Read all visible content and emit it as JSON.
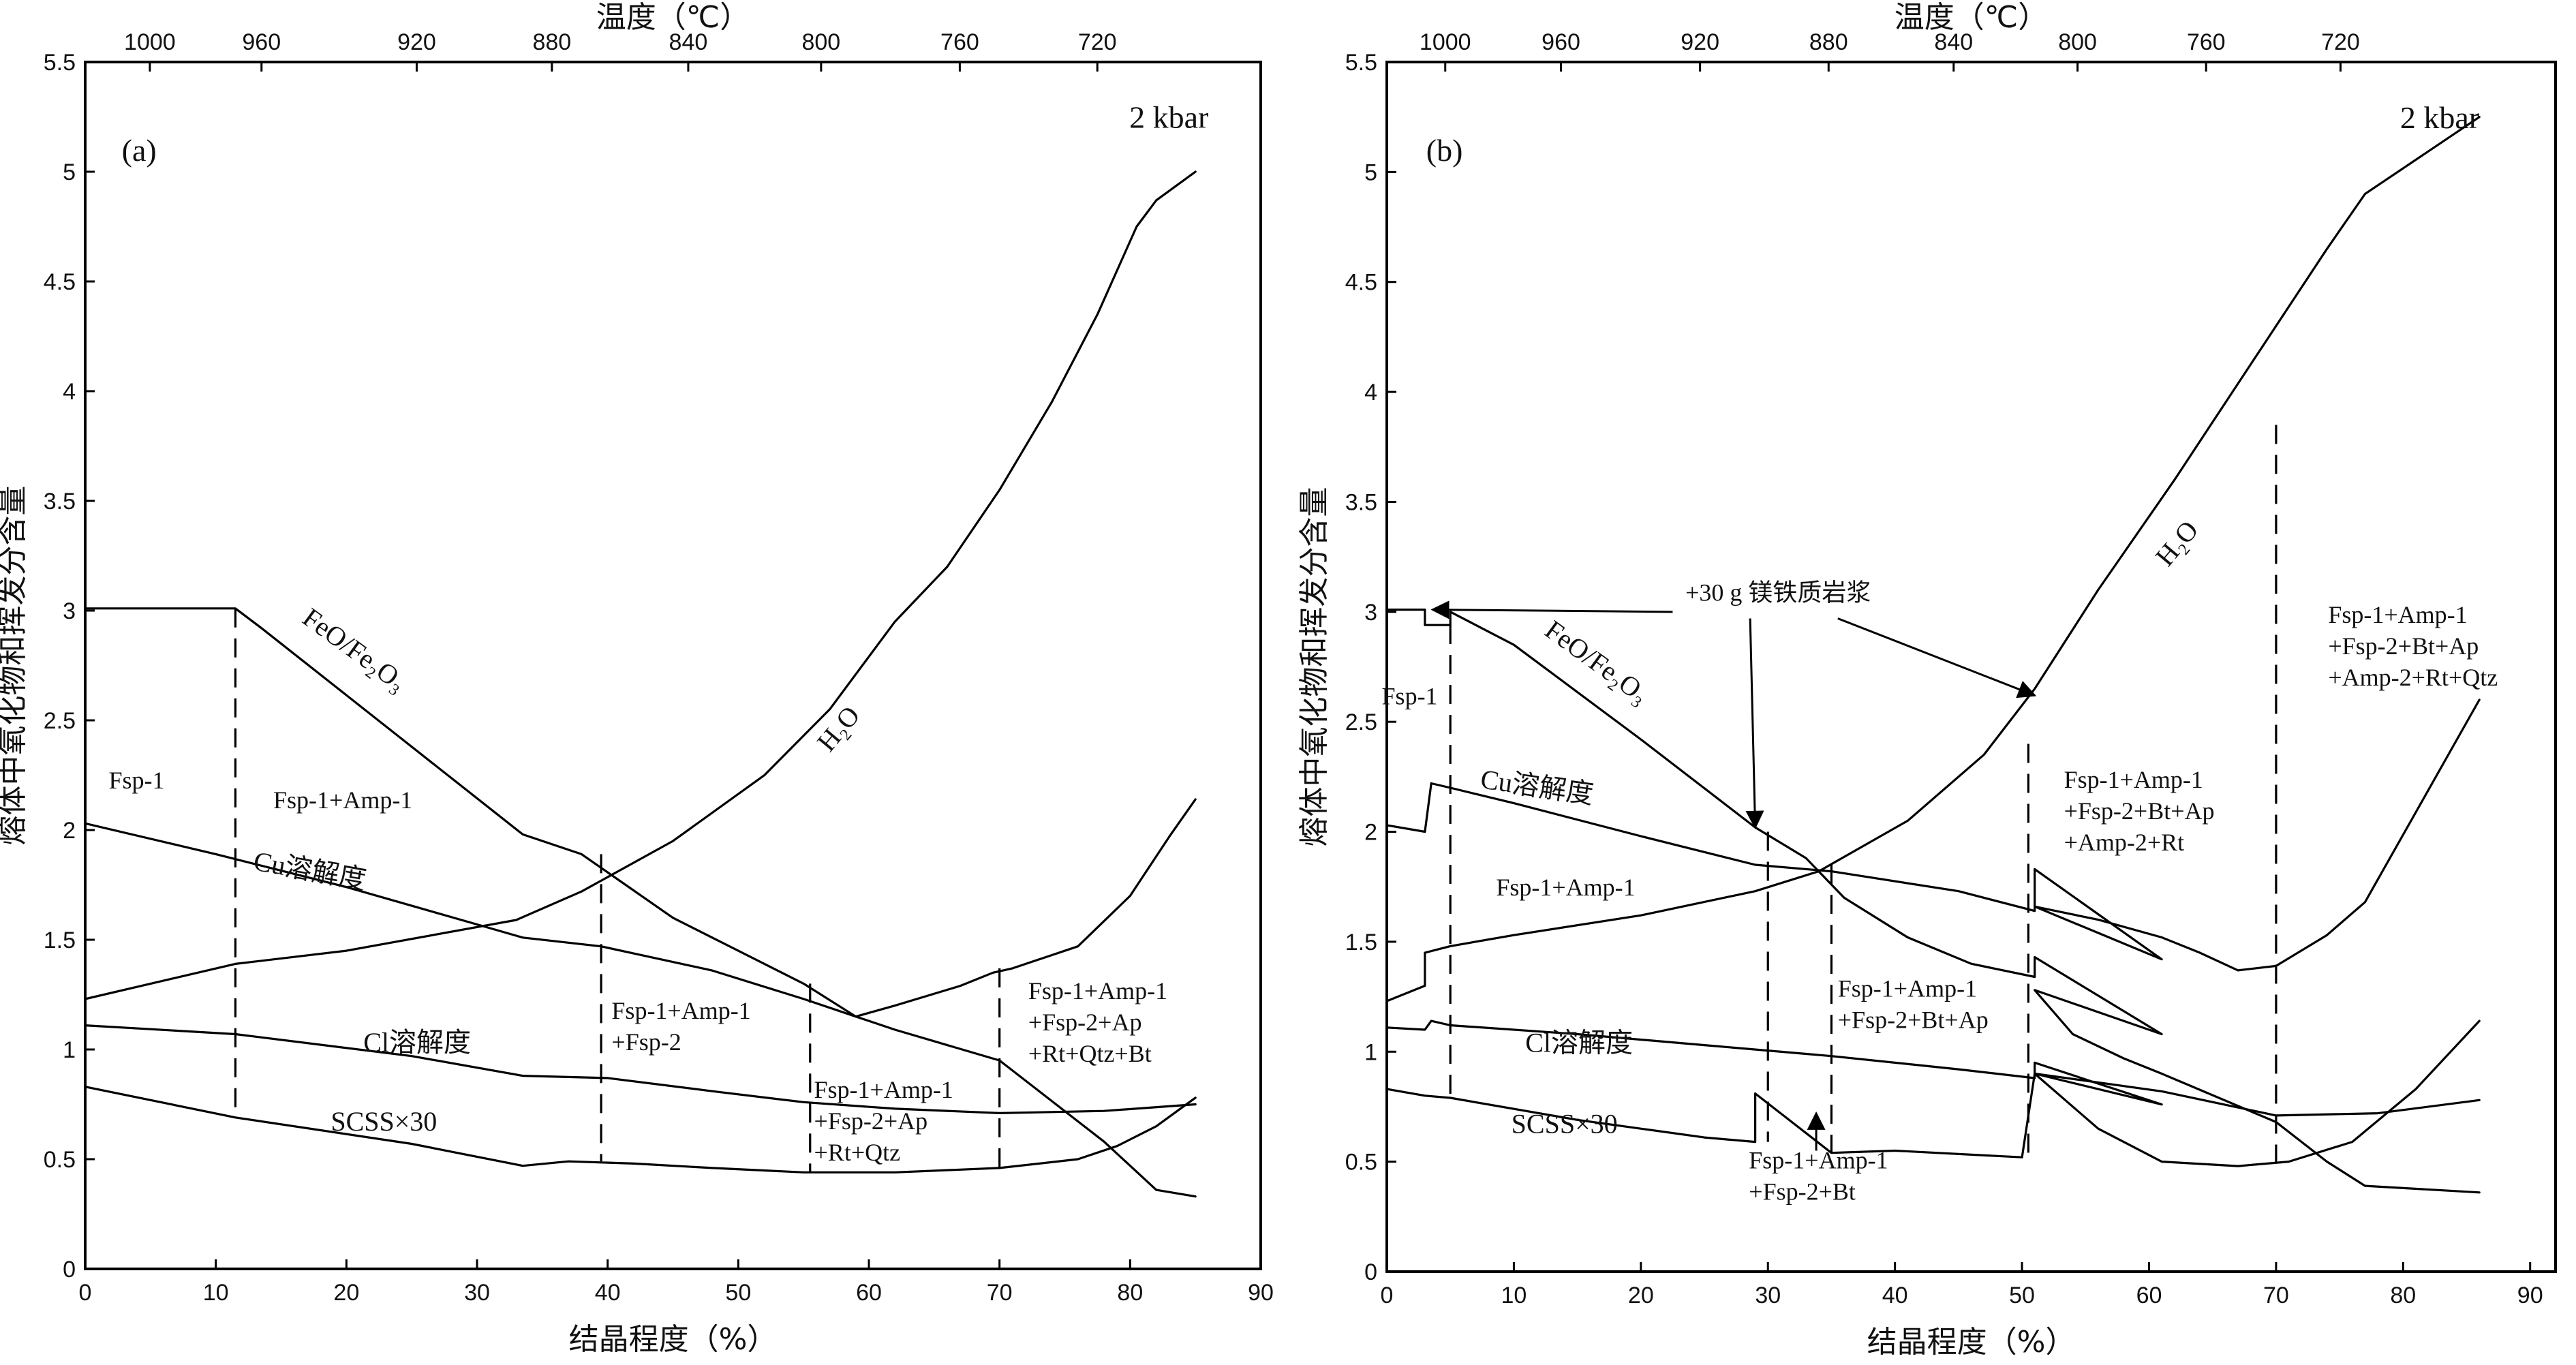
{
  "figure": {
    "panels": [
      {
        "tag": "(a)",
        "pressure": "2 kbar",
        "top_axis_title": "温度（℃）",
        "x_axis_title": "结晶程度（%）",
        "y_axis_title": "熔体中氧化物和挥发分含量",
        "x_ticks": [
          "0",
          "10",
          "20",
          "30",
          "40",
          "50",
          "60",
          "70",
          "80",
          "90"
        ],
        "y_ticks": [
          "0",
          "0.5",
          "1",
          "1.5",
          "2",
          "2.5",
          "3",
          "3.5",
          "4",
          "4.5",
          "5",
          "5.5"
        ],
        "top_ticks": [
          "1000",
          "960",
          "920",
          "880",
          "840",
          "800",
          "760",
          "720"
        ],
        "curve_labels": {
          "feo": "FeO/Fe₂O₃",
          "h2o": "H₂O",
          "cu": "Cu溶解度",
          "cl": "Cl溶解度",
          "scss": "SCSS×30"
        },
        "fields": [
          {
            "lines": [
              "Fsp-1"
            ]
          },
          {
            "lines": [
              "Fsp-1+Amp-1"
            ]
          },
          {
            "lines": [
              "Fsp-1+Amp-1",
              "+Fsp-2"
            ]
          },
          {
            "lines": [
              "Fsp-1+Amp-1",
              "+Fsp-2+Ap",
              "+Rt+Qtz"
            ]
          },
          {
            "lines": [
              "Fsp-1+Amp-1",
              "+Fsp-2+Ap",
              "+Rt+Qtz+Bt"
            ]
          }
        ]
      },
      {
        "tag": "(b)",
        "pressure": "2 kbar",
        "top_axis_title": "温度（℃）",
        "x_axis_title": "结晶程度（%）",
        "y_axis_title": "熔体中氧化物和挥发分含量",
        "x_ticks": [
          "0",
          "10",
          "20",
          "30",
          "40",
          "50",
          "60",
          "70",
          "80",
          "90"
        ],
        "y_ticks": [
          "0",
          "0.5",
          "1",
          "1.5",
          "2",
          "2.5",
          "3",
          "3.5",
          "4",
          "4.5",
          "5",
          "5.5"
        ],
        "top_ticks": [
          "1000",
          "960",
          "920",
          "880",
          "840",
          "800",
          "760",
          "720"
        ],
        "curve_labels": {
          "feo": "FeO/Fe₂O₃",
          "h2o": "H₂O",
          "cu": "Cu溶解度",
          "cl": "Cl溶解度",
          "scss": "SCSS×30"
        },
        "annotation": "+30 g 镁铁质岩浆",
        "fields": [
          {
            "lines": [
              "Fsp-1"
            ]
          },
          {
            "lines": [
              "Fsp-1+Amp-1"
            ]
          },
          {
            "lines": [
              "Fsp-1+Amp-1",
              "+Fsp-2+Bt+Ap"
            ]
          },
          {
            "lines": [
              "Fsp-1+Amp-1",
              "+Fsp-2+Bt"
            ]
          },
          {
            "lines": [
              "Fsp-1+Amp-1",
              "+Fsp-2+Bt+Ap",
              "+Amp-2+Rt"
            ]
          },
          {
            "lines": [
              "Fsp-1+Amp-1",
              "+Fsp-2+Bt+Ap",
              "+Amp-2+Rt+Qtz"
            ]
          }
        ]
      }
    ]
  },
  "chart_data": [
    {
      "type": "line",
      "title": "",
      "xlabel": "结晶程度（%）",
      "ylabel": "熔体中氧化物和挥发分含量",
      "top_xlabel": "温度（℃）",
      "xlim": [
        0,
        90
      ],
      "ylim": [
        0,
        5.5
      ],
      "top_ticks_temperature": [
        1000,
        960,
        920,
        880,
        840,
        800,
        760,
        720
      ],
      "grid": false,
      "series": [
        {
          "name": "FeO/Fe₂O₃",
          "points": [
            [
              0,
              3.01
            ],
            [
              11.5,
              3.01
            ],
            [
              13.5,
              2.92
            ],
            [
              33.5,
              1.98
            ],
            [
              38,
              1.89
            ],
            [
              45,
              1.6
            ],
            [
              55,
              1.3
            ],
            [
              59,
              1.15
            ],
            [
              62,
              1.09
            ],
            [
              70,
              0.95
            ],
            [
              78,
              0.58
            ],
            [
              82,
              0.36
            ],
            [
              85,
              0.33
            ]
          ]
        },
        {
          "name": "H₂O",
          "points": [
            [
              0,
              1.23
            ],
            [
              11.5,
              1.39
            ],
            [
              20,
              1.45
            ],
            [
              33,
              1.59
            ],
            [
              38,
              1.72
            ],
            [
              45,
              1.95
            ],
            [
              52,
              2.25
            ],
            [
              57,
              2.55
            ],
            [
              62,
              2.95
            ],
            [
              66,
              3.2
            ],
            [
              70,
              3.55
            ],
            [
              74,
              3.95
            ],
            [
              77.5,
              4.35
            ],
            [
              80.5,
              4.75
            ],
            [
              82,
              4.87
            ],
            [
              85,
              5.0
            ]
          ]
        },
        {
          "name": "Cu溶解度",
          "points": [
            [
              0,
              2.03
            ],
            [
              10,
              1.89
            ],
            [
              20,
              1.74
            ],
            [
              30,
              1.57
            ],
            [
              33.5,
              1.51
            ],
            [
              39.5,
              1.47
            ],
            [
              48,
              1.36
            ],
            [
              55,
              1.23
            ],
            [
              59,
              1.15
            ],
            [
              62,
              1.2
            ],
            [
              67,
              1.29
            ],
            [
              69.5,
              1.35
            ],
            [
              71,
              1.37
            ],
            [
              76,
              1.47
            ],
            [
              80,
              1.7
            ],
            [
              83,
              1.97
            ],
            [
              85,
              2.14
            ]
          ]
        },
        {
          "name": "Cl溶解度",
          "points": [
            [
              0,
              1.11
            ],
            [
              11.5,
              1.07
            ],
            [
              25,
              0.97
            ],
            [
              33.5,
              0.88
            ],
            [
              40,
              0.87
            ],
            [
              48,
              0.81
            ],
            [
              55,
              0.76
            ],
            [
              62,
              0.73
            ],
            [
              70,
              0.71
            ],
            [
              78,
              0.72
            ],
            [
              85,
              0.75
            ]
          ]
        },
        {
          "name": "SCSS×30",
          "points": [
            [
              0,
              0.83
            ],
            [
              11.5,
              0.69
            ],
            [
              25,
              0.57
            ],
            [
              33.5,
              0.47
            ],
            [
              37,
              0.49
            ],
            [
              42,
              0.48
            ],
            [
              48,
              0.46
            ],
            [
              55,
              0.44
            ],
            [
              62,
              0.44
            ],
            [
              70,
              0.46
            ],
            [
              76,
              0.5
            ],
            [
              79,
              0.56
            ],
            [
              82,
              0.65
            ],
            [
              85,
              0.78
            ]
          ]
        }
      ],
      "phase_boundaries_x": [
        11.5,
        39.5,
        55.5,
        70
      ]
    },
    {
      "type": "line",
      "title": "",
      "xlabel": "结晶程度（%）",
      "ylabel": "熔体中氧化物和挥发分含量",
      "top_xlabel": "温度（℃）",
      "xlim": [
        0,
        92
      ],
      "ylim": [
        0,
        5.5
      ],
      "top_ticks_temperature": [
        1000,
        960,
        920,
        880,
        840,
        800,
        760,
        720
      ],
      "grid": false,
      "series": [
        {
          "name": "FeO/Fe₂O₃",
          "points": [
            [
              0,
              3.01
            ],
            [
              3,
              3.01
            ],
            [
              3,
              2.94
            ],
            [
              5,
              2.94
            ],
            [
              5,
              3.0
            ],
            [
              10,
              2.85
            ],
            [
              20,
              2.42
            ],
            [
              29,
              2.02
            ],
            [
              33,
              1.88
            ],
            [
              36,
              1.7
            ],
            [
              41,
              1.52
            ],
            [
              46,
              1.4
            ],
            [
              51,
              1.34
            ],
            [
              51,
              1.43
            ],
            [
              61,
              1.08
            ],
            [
              51,
              1.28
            ],
            [
              54,
              1.08
            ],
            [
              58,
              0.97
            ],
            [
              61,
              0.9
            ],
            [
              70,
              0.68
            ],
            [
              74,
              0.5
            ],
            [
              77,
              0.39
            ],
            [
              86,
              0.36
            ]
          ]
        },
        {
          "name": "H₂O",
          "points": [
            [
              0,
              1.23
            ],
            [
              3,
              1.3
            ],
            [
              3,
              1.45
            ],
            [
              5,
              1.48
            ],
            [
              10,
              1.53
            ],
            [
              20,
              1.62
            ],
            [
              29,
              1.73
            ],
            [
              34,
              1.82
            ],
            [
              41,
              2.05
            ],
            [
              47,
              2.35
            ],
            [
              51,
              2.65
            ],
            [
              56,
              3.1
            ],
            [
              62,
              3.6
            ],
            [
              66,
              3.95
            ],
            [
              70,
              4.3
            ],
            [
              74,
              4.65
            ],
            [
              77,
              4.9
            ],
            [
              86,
              5.25
            ]
          ]
        },
        {
          "name": "Cu溶解度",
          "points": [
            [
              0,
              2.03
            ],
            [
              3,
              2.0
            ],
            [
              3.5,
              2.22
            ],
            [
              5,
              2.2
            ],
            [
              10,
              2.13
            ],
            [
              20,
              1.98
            ],
            [
              29,
              1.85
            ],
            [
              35,
              1.82
            ],
            [
              45,
              1.73
            ],
            [
              51,
              1.64
            ],
            [
              51,
              1.83
            ],
            [
              61,
              1.42
            ],
            [
              51,
              1.66
            ],
            [
              56,
              1.6
            ],
            [
              61,
              1.52
            ],
            [
              64,
              1.45
            ],
            [
              67,
              1.37
            ],
            [
              70,
              1.39
            ],
            [
              74,
              1.53
            ],
            [
              77,
              1.68
            ],
            [
              86,
              2.6
            ]
          ]
        },
        {
          "name": "Cl溶解度",
          "points": [
            [
              0,
              1.11
            ],
            [
              3,
              1.1
            ],
            [
              3.5,
              1.14
            ],
            [
              5,
              1.12
            ],
            [
              15,
              1.08
            ],
            [
              25,
              1.03
            ],
            [
              35,
              0.98
            ],
            [
              45,
              0.92
            ],
            [
              51,
              0.88
            ],
            [
              51,
              0.95
            ],
            [
              61,
              0.76
            ],
            [
              51,
              0.9
            ],
            [
              61,
              0.82
            ],
            [
              70,
              0.71
            ],
            [
              78,
              0.72
            ],
            [
              86,
              0.78
            ]
          ]
        },
        {
          "name": "SCSS×30",
          "points": [
            [
              0,
              0.83
            ],
            [
              3,
              0.8
            ],
            [
              5,
              0.79
            ],
            [
              15,
              0.69
            ],
            [
              25,
              0.61
            ],
            [
              29,
              0.59
            ],
            [
              29,
              0.81
            ],
            [
              35,
              0.54
            ],
            [
              40,
              0.55
            ],
            [
              50,
              0.52
            ],
            [
              51,
              0.9
            ],
            [
              56,
              0.65
            ],
            [
              61,
              0.5
            ],
            [
              67,
              0.48
            ],
            [
              71,
              0.5
            ],
            [
              76,
              0.59
            ],
            [
              81,
              0.83
            ],
            [
              86,
              1.14
            ]
          ]
        }
      ],
      "phase_boundaries_x": [
        5,
        30,
        35,
        50.5,
        70
      ]
    }
  ]
}
